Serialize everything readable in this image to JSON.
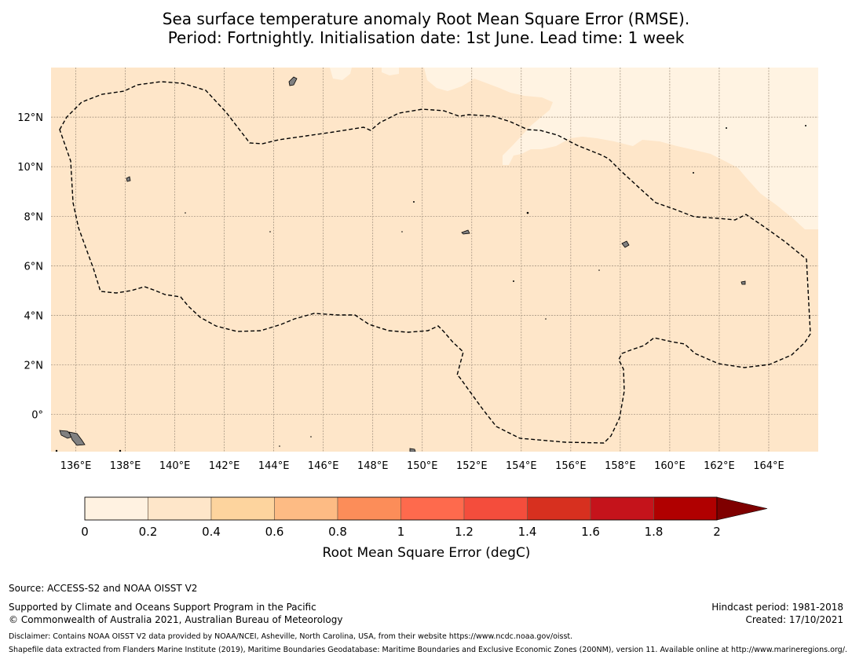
{
  "title": {
    "line1": "Sea surface temperature anomaly Root Mean Square Error (RMSE).",
    "line2": "Period: Fortnightly. Initialisation date: 1st June. Lead time: 1 week"
  },
  "map": {
    "lon_range": [
      135,
      166
    ],
    "lat_range": [
      -1.5,
      14
    ],
    "x_ticks": [
      136,
      138,
      140,
      142,
      144,
      146,
      148,
      150,
      152,
      154,
      156,
      158,
      160,
      162,
      164
    ],
    "x_tick_labels": [
      "136°E",
      "138°E",
      "140°E",
      "142°E",
      "144°E",
      "146°E",
      "148°E",
      "150°E",
      "152°E",
      "154°E",
      "156°E",
      "158°E",
      "160°E",
      "162°E",
      "164°E"
    ],
    "y_ticks": [
      0,
      2,
      4,
      6,
      8,
      10,
      12
    ],
    "y_tick_labels": [
      "0°",
      "2°N",
      "4°N",
      "6°N",
      "8°N",
      "10°N",
      "12°N"
    ],
    "background_color": "#fee6c9",
    "light_patch_color": "#fff3e2",
    "gridlines": true,
    "eez_boundary_style": "dashed black"
  },
  "colorbar": {
    "title": "Root Mean Square Error (degC)",
    "bounds": [
      0,
      0.2,
      0.4,
      0.6,
      0.8,
      1,
      1.2,
      1.4,
      1.6,
      1.8,
      2
    ],
    "tick_labels": [
      "0",
      "0.2",
      "0.4",
      "0.6",
      "0.8",
      "1",
      "1.2",
      "1.4",
      "1.6",
      "1.8",
      "2"
    ],
    "colors": [
      "#fff2e1",
      "#fee6c9",
      "#fdd49e",
      "#fdbb84",
      "#fc8d59",
      "#fe6a4d",
      "#f44d3c",
      "#d7301f",
      "#c5131b",
      "#b00000"
    ],
    "extend_color": "#7f0000"
  },
  "footer": {
    "source": "Source: ACCESS-S2 and NOAA OISST V2",
    "support": "Supported by Climate and Oceans Support Program in the Pacific",
    "copyright": "© Commonwealth of Australia 2021, Australian Bureau of Meteorology",
    "hindcast": "Hindcast period: 1981-2018",
    "created": "Created: 17/10/2021",
    "disclaimer": "Disclaimer: Contains NOAA OISST V2 data provided by NOAA/NCEI, Asheville, North Carolina, USA, from their website https://www.ncdc.noaa.gov/oisst.",
    "shapefile": "Shapefile data extracted from Flanders Marine Institute (2019), Maritime Boundaries Geodatabase: Maritime Boundaries and Exclusive Economic Zones (200NM), version 11. Available online at http://www.marineregions.org/."
  }
}
